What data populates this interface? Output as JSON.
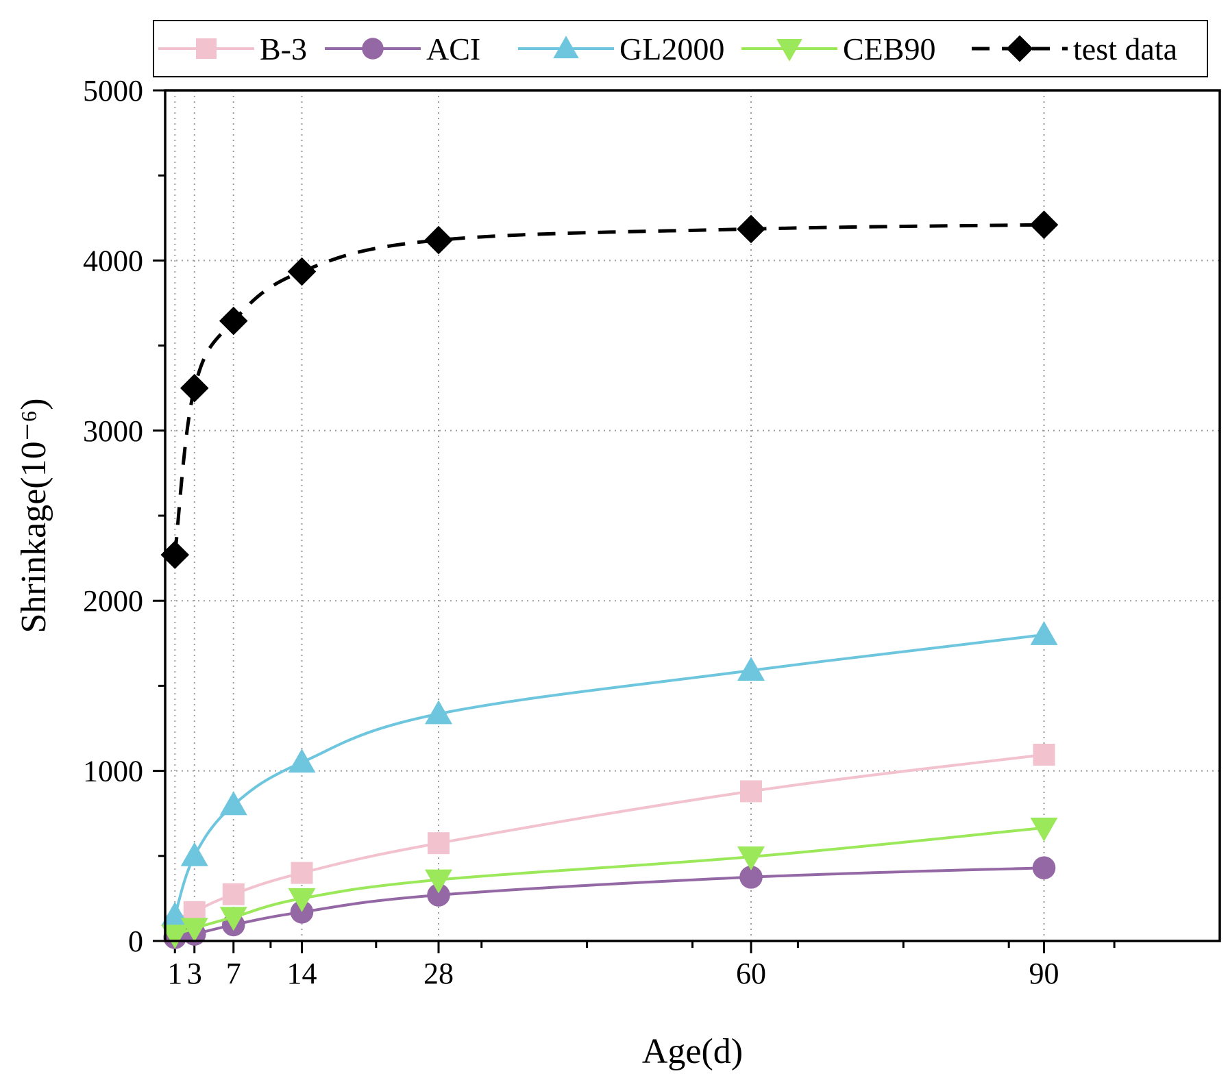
{
  "chart_data": {
    "type": "line",
    "xlabel": "Age(d)",
    "ylabel": "Shrinkage(10⁻⁶)",
    "xlim": [
      0,
      108
    ],
    "ylim": [
      0,
      5000
    ],
    "x_ticks": [
      1,
      3,
      7,
      14,
      28,
      60,
      90
    ],
    "y_ticks": [
      0,
      1000,
      2000,
      3000,
      4000,
      5000
    ],
    "grid": true,
    "legend_position": "top",
    "x": [
      1,
      3,
      7,
      14,
      28,
      60,
      90
    ],
    "series": [
      {
        "name": "B-3",
        "color": "#f2c2cf",
        "marker": "square",
        "dash": "solid",
        "values": [
          90,
          170,
          275,
          400,
          575,
          880,
          1095
        ]
      },
      {
        "name": "ACI",
        "color": "#9467a5",
        "marker": "circle",
        "dash": "solid",
        "values": [
          20,
          40,
          95,
          170,
          270,
          375,
          430
        ]
      },
      {
        "name": "GL2000",
        "color": "#6dc5de",
        "marker": "triangle-up",
        "dash": "solid",
        "values": [
          150,
          500,
          800,
          1050,
          1335,
          1590,
          1800
        ]
      },
      {
        "name": "CEB90",
        "color": "#9be85a",
        "marker": "triangle-down",
        "dash": "solid",
        "values": [
          35,
          75,
          140,
          250,
          360,
          495,
          665
        ]
      },
      {
        "name": "test data",
        "color": "#000000",
        "marker": "diamond",
        "dash": "dashed",
        "values": [
          2270,
          3250,
          3645,
          3935,
          4120,
          4185,
          4210
        ]
      }
    ]
  }
}
